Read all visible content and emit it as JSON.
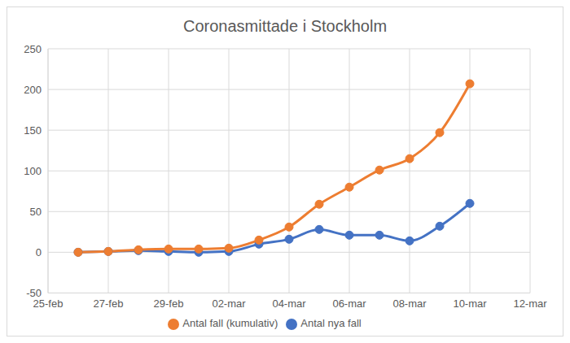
{
  "chart_data": {
    "type": "line",
    "title": "Coronasmittade i Stockholm",
    "categories": [
      "25-feb",
      null,
      "27-feb",
      null,
      "29-feb",
      null,
      "02-mar",
      null,
      "04-mar",
      null,
      "06-mar",
      null,
      "08-mar",
      null,
      "10-mar",
      null,
      "12-mar"
    ],
    "series": [
      {
        "name": "Antal nya fall",
        "color": "#4472c4",
        "marker": "circle",
        "line_style": "smooth",
        "values": [
          null,
          0,
          1,
          2,
          1,
          0,
          1,
          10,
          16,
          28,
          21,
          21,
          14,
          32,
          60,
          null,
          null
        ]
      },
      {
        "name": "Antal fall (kumulativ)",
        "color": "#ed7d31",
        "marker": "circle",
        "line_style": "smooth",
        "values": [
          null,
          0,
          1,
          3,
          4,
          4,
          5,
          15,
          31,
          59,
          80,
          101,
          115,
          147,
          207,
          null,
          null
        ]
      }
    ],
    "ylim": [
      -50,
      250
    ],
    "yticks": [
      -50,
      0,
      50,
      100,
      150,
      200,
      250
    ],
    "grid": true,
    "legend": "bottom"
  }
}
